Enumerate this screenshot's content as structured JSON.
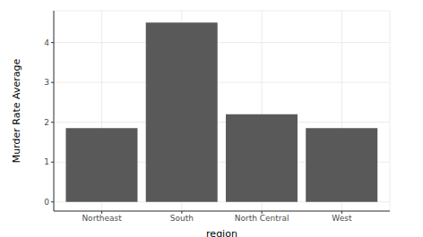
{
  "chart_data": {
    "type": "bar",
    "categories": [
      "Northeast",
      "South",
      "North Central",
      "West"
    ],
    "values": [
      1.85,
      4.5,
      2.2,
      1.85
    ],
    "color": "#595959",
    "x_label": "region",
    "y_label": "Murder Rate Average",
    "ylim": [
      -0.23,
      4.8
    ],
    "yticks": [
      0,
      1,
      2,
      3,
      4
    ],
    "grid": true
  }
}
